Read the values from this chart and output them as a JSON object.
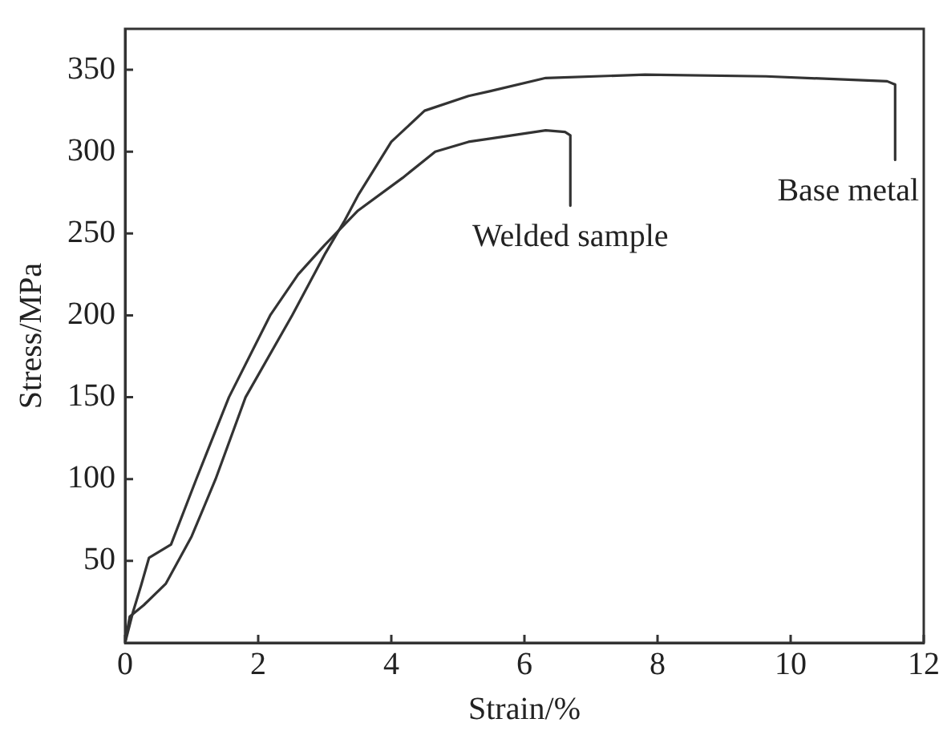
{
  "chart_data": {
    "type": "line",
    "xlabel": "Strain/%",
    "ylabel": "Stress/MPa",
    "xlim": [
      0,
      12
    ],
    "xticks": [
      0,
      2,
      4,
      6,
      8,
      10,
      12
    ],
    "ylim": [
      0,
      375
    ],
    "yticks": [
      50,
      100,
      150,
      200,
      250,
      300,
      350
    ],
    "grid": false,
    "legend": false,
    "marker": "none",
    "line_style": "solid",
    "series": [
      {
        "name": "Welded sample",
        "color": "#333333",
        "x": [
          0,
          0.12,
          0.24,
          0.36,
          0.69,
          1.07,
          1.56,
          2.18,
          2.6,
          3.0,
          3.5,
          4.17,
          4.66,
          5.16,
          5.49,
          6.32,
          6.61,
          6.69,
          6.69
        ],
        "values": [
          0,
          19,
          35,
          52,
          60,
          100,
          150,
          200,
          225,
          243,
          264,
          284,
          300,
          306,
          308,
          313,
          312,
          310,
          267
        ]
      },
      {
        "name": "Base metal",
        "color": "#333333",
        "x": [
          0,
          0.07,
          0.28,
          0.61,
          1.0,
          1.36,
          1.81,
          2.51,
          3.01,
          3.3,
          3.51,
          4.0,
          4.5,
          5.16,
          5.49,
          6.32,
          7.81,
          9.63,
          11.45,
          11.57,
          11.57
        ],
        "values": [
          0,
          16,
          23,
          36,
          65,
          100,
          150,
          200,
          238,
          258,
          274,
          306,
          325,
          334,
          337,
          345,
          347,
          346,
          343,
          341,
          295
        ]
      }
    ]
  }
}
